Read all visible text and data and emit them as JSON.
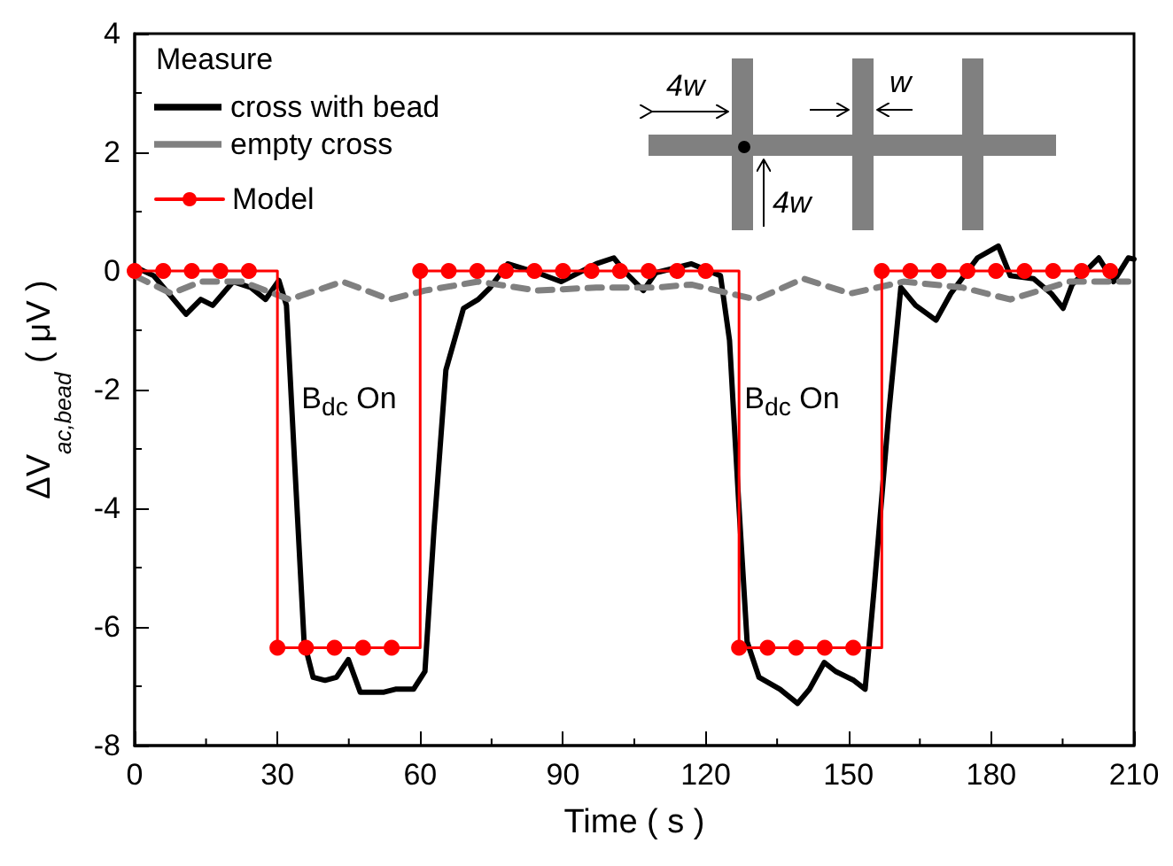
{
  "chart_data": {
    "type": "line",
    "xlabel": "Time ( s )",
    "ylabel": "ΔV$_{ac,bead}$ ( μV )",
    "legend_title": "Measure",
    "xlim": [
      0,
      210
    ],
    "xticks": [
      0,
      30,
      60,
      90,
      120,
      150,
      180,
      210
    ],
    "ylim": [
      -8,
      4
    ],
    "yticks": [
      -8,
      -6,
      -4,
      -2,
      0,
      2,
      4
    ],
    "grid": false,
    "legend": "top left",
    "annotations": [
      "B$_{dc}$ On",
      "B$_{dc}$ On",
      "4w",
      "w",
      "4w"
    ],
    "series": [
      {
        "name": "cross with bead",
        "color": "#000000",
        "line_style": "solid",
        "marker": "none",
        "x": [
          0,
          4,
          10.8,
          13.9,
          16.4,
          20.7,
          24.4,
          27.5,
          30.3,
          31.9,
          33.7,
          35.6,
          37.5,
          40,
          42.4,
          44.9,
          47.4,
          52.4,
          54.8,
          58.6,
          61,
          62.9,
          65.4,
          69.1,
          72.2,
          74.7,
          78.4,
          84.6,
          89.6,
          97,
          100.7,
          103.2,
          106.9,
          109.5,
          117,
          123.1,
          125,
          126.9,
          128.7,
          131.2,
          135.6,
          139.3,
          141.8,
          144.9,
          147.3,
          151.1,
          153.5,
          155.4,
          158.5,
          161,
          164.1,
          168.4,
          171.5,
          177.1,
          181.5,
          184,
          188.9,
          192.6,
          195.1,
          197,
          202.6,
          205.7,
          208.8,
          210
        ],
        "values": [
          0.07,
          -0.08,
          -0.73,
          -0.48,
          -0.58,
          -0.18,
          -0.28,
          -0.48,
          -0.16,
          -0.58,
          -3.36,
          -6.25,
          -6.85,
          -6.9,
          -6.85,
          -6.55,
          -7.1,
          -7.1,
          -7.05,
          -7.05,
          -6.75,
          -4.36,
          -1.67,
          -0.63,
          -0.48,
          -0.28,
          0.12,
          -0.03,
          -0.18,
          0.12,
          0.22,
          -0.03,
          -0.33,
          -0.03,
          0.12,
          -0.08,
          -1.17,
          -3.86,
          -6.25,
          -6.85,
          -7.05,
          -7.29,
          -7.05,
          -6.6,
          -6.75,
          -6.9,
          -7.05,
          -5.35,
          -2.37,
          -0.28,
          -0.58,
          -0.83,
          -0.38,
          0.22,
          0.42,
          -0.08,
          -0.13,
          -0.38,
          -0.63,
          -0.23,
          0.22,
          -0.18,
          0.22,
          0.2
        ]
      },
      {
        "name": "empty cross",
        "color": "#808080",
        "line_style": "dashed",
        "marker": "none",
        "x": [
          0,
          7.7,
          13.9,
          22.6,
          32.5,
          43.7,
          53.6,
          61,
          72.2,
          84.6,
          97,
          109.4,
          117,
          130.6,
          140.5,
          150.4,
          161.6,
          174,
          184,
          196.4,
          208.8
        ],
        "values": [
          -0.08,
          -0.38,
          -0.18,
          -0.18,
          -0.48,
          -0.18,
          -0.48,
          -0.33,
          -0.18,
          -0.33,
          -0.28,
          -0.28,
          -0.23,
          -0.48,
          -0.13,
          -0.38,
          -0.18,
          -0.28,
          -0.48,
          -0.18,
          -0.18
        ]
      },
      {
        "name": "Model",
        "type": "step",
        "color": "#ff0000",
        "line_style": "solid",
        "marker": "circle",
        "x": [
          0,
          6,
          12,
          18,
          24,
          30,
          36,
          42,
          48,
          54,
          60,
          66,
          72,
          78,
          84,
          90,
          96,
          102,
          108,
          114,
          120,
          127,
          133,
          139,
          145,
          151,
          157,
          163,
          169,
          175,
          181,
          187,
          193,
          199,
          205
        ],
        "values": [
          0,
          0,
          0,
          0,
          0,
          -6.35,
          -6.35,
          -6.35,
          -6.35,
          -6.35,
          0,
          0,
          0,
          0,
          0,
          0,
          0,
          0,
          0,
          0,
          0,
          -6.35,
          -6.35,
          -6.35,
          -6.35,
          -6.35,
          0,
          0,
          0,
          0,
          0,
          0,
          0,
          0,
          0
        ]
      }
    ]
  }
}
